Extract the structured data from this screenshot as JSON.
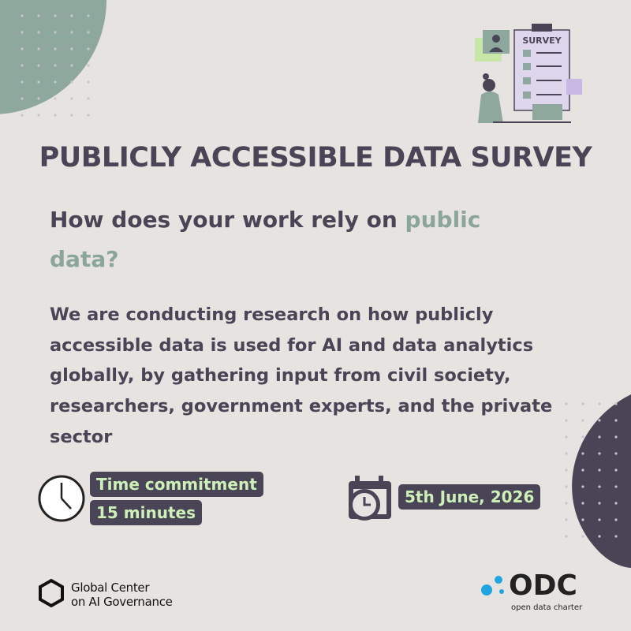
{
  "illustration": {
    "label": "SURVEY"
  },
  "title": "PUBLICLY ACCESSIBLE DATA SURVEY",
  "question": {
    "lead": "How does your work rely on ",
    "highlight": "public data?"
  },
  "body": "We are conducting research on how publicly accessible data is used for AI and data analytics globally, by gathering input from civil society, researchers, government experts, and the private sector",
  "time": {
    "label": "Time commitment",
    "value": "15 minutes"
  },
  "date": "5th June, 2026",
  "logos": {
    "left": {
      "line1": "Global Center",
      "line2": "on AI Governance"
    },
    "right": {
      "name": "ODC",
      "tagline": "open data charter"
    }
  }
}
